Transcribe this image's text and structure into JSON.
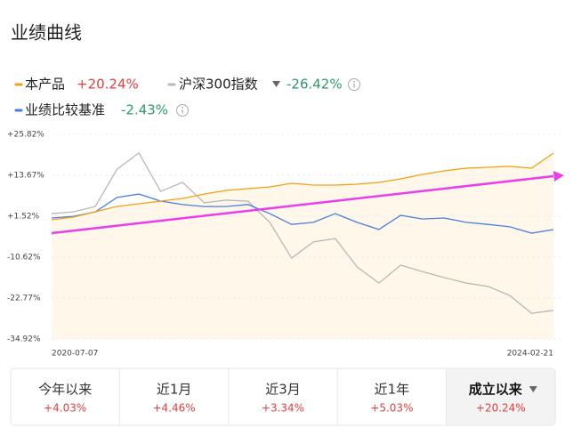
{
  "chart_data": {
    "type": "line",
    "title": "业绩曲线",
    "categories": [
      "2020-07-07",
      null,
      null,
      null,
      null,
      null,
      null,
      null,
      null,
      null,
      null,
      null,
      null,
      null,
      null,
      null,
      null,
      null,
      null,
      null,
      null,
      null,
      null,
      "2024-02-21"
    ],
    "series": [
      {
        "name": "本产品",
        "change": "+20.24%",
        "color": "#f5a011",
        "values": [
          0.47,
          1.26,
          2.84,
          4.43,
          5.22,
          6.01,
          6.81,
          8.13,
          9.18,
          9.71,
          10.24,
          11.3,
          10.77,
          10.77,
          11.03,
          11.56,
          12.62,
          13.94,
          14.99,
          15.78,
          16.05,
          16.31,
          15.78,
          20.24
        ]
      },
      {
        "name": "沪深300指数",
        "change": "-26.42%",
        "color": "#b8b8b8",
        "values": [
          2.3,
          2.8,
          4.4,
          15.5,
          20.3,
          8.9,
          11.6,
          5.5,
          6.3,
          6.0,
          -0.3,
          -10.9,
          -6.1,
          -5.1,
          -13.5,
          -18.3,
          -13.0,
          -14.9,
          -16.7,
          -18.3,
          -19.3,
          -22.0,
          -27.3,
          -26.42
        ]
      },
      {
        "name": "业绩比较基准",
        "change": "-2.43%",
        "color": "#4a7fe0",
        "values": [
          1.0,
          1.5,
          2.8,
          7.1,
          8.1,
          6.0,
          5.0,
          4.4,
          4.4,
          5.0,
          2.3,
          -0.9,
          -0.3,
          2.3,
          -0.3,
          -2.4,
          1.8,
          0.7,
          1.0,
          -0.3,
          -0.9,
          -1.6,
          -3.5,
          -2.43
        ]
      }
    ],
    "ylim": [
      -34.92,
      25.82
    ],
    "yticks": [
      {
        "value": 25.82,
        "label": "+25.82%"
      },
      {
        "value": 13.67,
        "label": "+13.67%"
      },
      {
        "value": 1.52,
        "label": "+1.52%"
      },
      {
        "value": -10.62,
        "label": "-10.62%"
      },
      {
        "value": -22.77,
        "label": "-22.77%"
      },
      {
        "value": -34.92,
        "label": "-34.92%"
      }
    ],
    "grid": true
  },
  "tabs": [
    {
      "label": "今年以来",
      "change": "+4.03%"
    },
    {
      "label": "近1月",
      "change": "+4.46%"
    },
    {
      "label": "近3月",
      "change": "+3.34%"
    },
    {
      "label": "近1年",
      "change": "+5.03%"
    },
    {
      "label": "成立以来",
      "change": "+20.24%"
    }
  ]
}
